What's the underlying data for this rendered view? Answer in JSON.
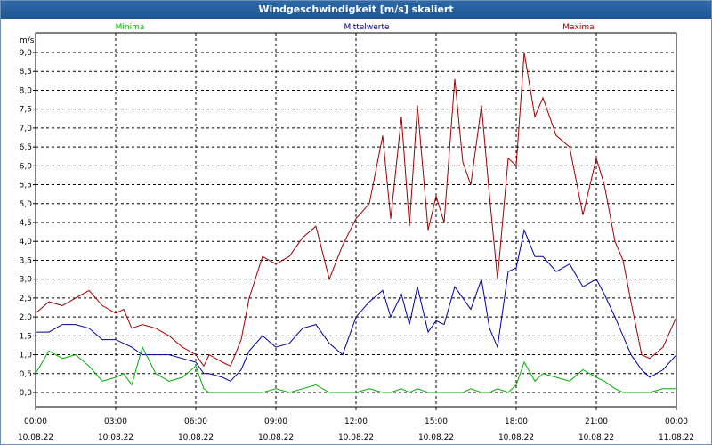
{
  "window": {
    "title": "Windgeschwindigkeit [m/s] skaliert"
  },
  "chart_data": {
    "type": "line",
    "title": "Windgeschwindigkeit [m/s] skaliert",
    "ylabel": "m/s",
    "xlabel": "",
    "ylim": [
      0,
      9.4
    ],
    "xlim": [
      0,
      24
    ],
    "grid": true,
    "y_ticks": [
      "9,0",
      "8,5",
      "8,0",
      "7,5",
      "7,0",
      "6,5",
      "6,0",
      "5,5",
      "5,0",
      "4,5",
      "4,0",
      "3,5",
      "3,0",
      "2,5",
      "2,0",
      "1,5",
      "1,0",
      "0,5",
      "0,0"
    ],
    "y_tick_values": [
      9.0,
      8.5,
      8.0,
      7.5,
      7.0,
      6.5,
      6.0,
      5.5,
      5.0,
      4.5,
      4.0,
      3.5,
      3.0,
      2.5,
      2.0,
      1.5,
      1.0,
      0.5,
      0.0
    ],
    "x_ticks": [
      {
        "time": "00:00",
        "date": "10.08.22"
      },
      {
        "time": "03:00",
        "date": "10.08.22"
      },
      {
        "time": "06:00",
        "date": "10.08.22"
      },
      {
        "time": "09:00",
        "date": "10.08.22"
      },
      {
        "time": "12:00",
        "date": "10.08.22"
      },
      {
        "time": "15:00",
        "date": "10.08.22"
      },
      {
        "time": "18:00",
        "date": "10.08.22"
      },
      {
        "time": "21:00",
        "date": "10.08.22"
      },
      {
        "time": "00:00",
        "date": "11.08.22"
      }
    ],
    "x_tick_hours": [
      0,
      3,
      6,
      9,
      12,
      15,
      18,
      21,
      24
    ],
    "legend": [
      {
        "name": "Minima",
        "color": "#00b000"
      },
      {
        "name": "Mittelwerte",
        "color": "#0000a0"
      },
      {
        "name": "Maxima",
        "color": "#a00000"
      }
    ],
    "series": [
      {
        "name": "Maxima",
        "color": "#a00000",
        "x": [
          0,
          0.5,
          1,
          1.5,
          2,
          2.5,
          3,
          3.3,
          3.6,
          4,
          4.5,
          5,
          5.5,
          6,
          6.3,
          6.5,
          7,
          7.3,
          7.7,
          8,
          8.5,
          9,
          9.5,
          10,
          10.5,
          11,
          11.5,
          12,
          12.5,
          13,
          13.3,
          13.7,
          14,
          14.3,
          14.7,
          15,
          15.3,
          15.7,
          16,
          16.3,
          16.7,
          17,
          17.3,
          17.7,
          18,
          18.3,
          18.7,
          19,
          19.5,
          20,
          20.5,
          21,
          21.3,
          21.7,
          22,
          22.3,
          22.7,
          23,
          23.5,
          24
        ],
        "values": [
          2.1,
          2.4,
          2.3,
          2.5,
          2.7,
          2.3,
          2.1,
          2.2,
          1.7,
          1.8,
          1.7,
          1.5,
          1.2,
          1.0,
          0.7,
          1.0,
          0.8,
          0.7,
          1.4,
          2.5,
          3.6,
          3.4,
          3.6,
          4.1,
          4.4,
          3.0,
          3.9,
          4.6,
          5.0,
          6.8,
          4.6,
          7.3,
          4.4,
          7.6,
          4.3,
          5.2,
          4.5,
          8.3,
          6.1,
          5.5,
          7.6,
          5.2,
          3.0,
          6.2,
          6.0,
          9.0,
          7.3,
          7.8,
          6.8,
          6.5,
          4.7,
          6.2,
          5.5,
          4.0,
          3.5,
          2.4,
          1.0,
          0.9,
          1.2,
          2.0
        ]
      },
      {
        "name": "Mittelwerte",
        "color": "#0000a0",
        "x": [
          0,
          0.5,
          1,
          1.5,
          2,
          2.5,
          3,
          3.3,
          3.6,
          4,
          4.5,
          5,
          5.5,
          6,
          6.3,
          6.5,
          7,
          7.3,
          7.7,
          8,
          8.5,
          9,
          9.5,
          10,
          10.5,
          11,
          11.5,
          12,
          12.5,
          13,
          13.3,
          13.7,
          14,
          14.3,
          14.7,
          15,
          15.3,
          15.7,
          16,
          16.3,
          16.7,
          17,
          17.3,
          17.7,
          18,
          18.3,
          18.7,
          19,
          19.5,
          20,
          20.5,
          21,
          21.3,
          21.7,
          22,
          22.3,
          22.7,
          23,
          23.5,
          24
        ],
        "values": [
          1.6,
          1.6,
          1.8,
          1.8,
          1.7,
          1.4,
          1.4,
          1.3,
          1.2,
          1.0,
          1.0,
          1.0,
          0.9,
          0.8,
          0.5,
          0.5,
          0.4,
          0.3,
          0.6,
          1.1,
          1.5,
          1.2,
          1.3,
          1.7,
          1.8,
          1.3,
          1.0,
          2.0,
          2.4,
          2.7,
          2.0,
          2.6,
          1.8,
          2.8,
          1.6,
          1.9,
          1.8,
          2.8,
          2.5,
          2.2,
          3.0,
          1.7,
          1.2,
          3.2,
          3.3,
          4.3,
          3.6,
          3.6,
          3.2,
          3.4,
          2.8,
          3.0,
          2.6,
          2.0,
          1.5,
          1.0,
          0.6,
          0.4,
          0.6,
          1.0
        ]
      },
      {
        "name": "Minima",
        "color": "#00b000",
        "x": [
          0,
          0.5,
          1,
          1.5,
          2,
          2.5,
          3,
          3.3,
          3.6,
          4,
          4.5,
          5,
          5.5,
          6,
          6.3,
          6.5,
          7,
          7.3,
          7.7,
          8,
          8.5,
          9,
          9.5,
          10,
          10.5,
          11,
          11.5,
          12,
          12.5,
          13,
          13.3,
          13.7,
          14,
          14.3,
          14.7,
          15,
          15.3,
          15.7,
          16,
          16.3,
          16.7,
          17,
          17.3,
          17.7,
          18,
          18.3,
          18.7,
          19,
          19.5,
          20,
          20.5,
          21,
          21.3,
          21.7,
          22,
          22.3,
          22.7,
          23,
          23.5,
          24
        ],
        "values": [
          0.5,
          1.1,
          0.9,
          1.0,
          0.7,
          0.3,
          0.4,
          0.5,
          0.2,
          1.2,
          0.5,
          0.3,
          0.4,
          0.7,
          0.1,
          0.0,
          0.0,
          0.0,
          0.0,
          0.0,
          0.0,
          0.1,
          0.0,
          0.1,
          0.2,
          0.0,
          0.0,
          0.0,
          0.1,
          0.0,
          0.0,
          0.1,
          0.0,
          0.1,
          0.0,
          0.0,
          0.0,
          0.0,
          0.0,
          0.1,
          0.0,
          0.0,
          0.1,
          0.0,
          0.2,
          0.8,
          0.3,
          0.5,
          0.4,
          0.3,
          0.6,
          0.4,
          0.3,
          0.1,
          0.0,
          0.0,
          0.0,
          0.0,
          0.1,
          0.1
        ]
      }
    ]
  }
}
